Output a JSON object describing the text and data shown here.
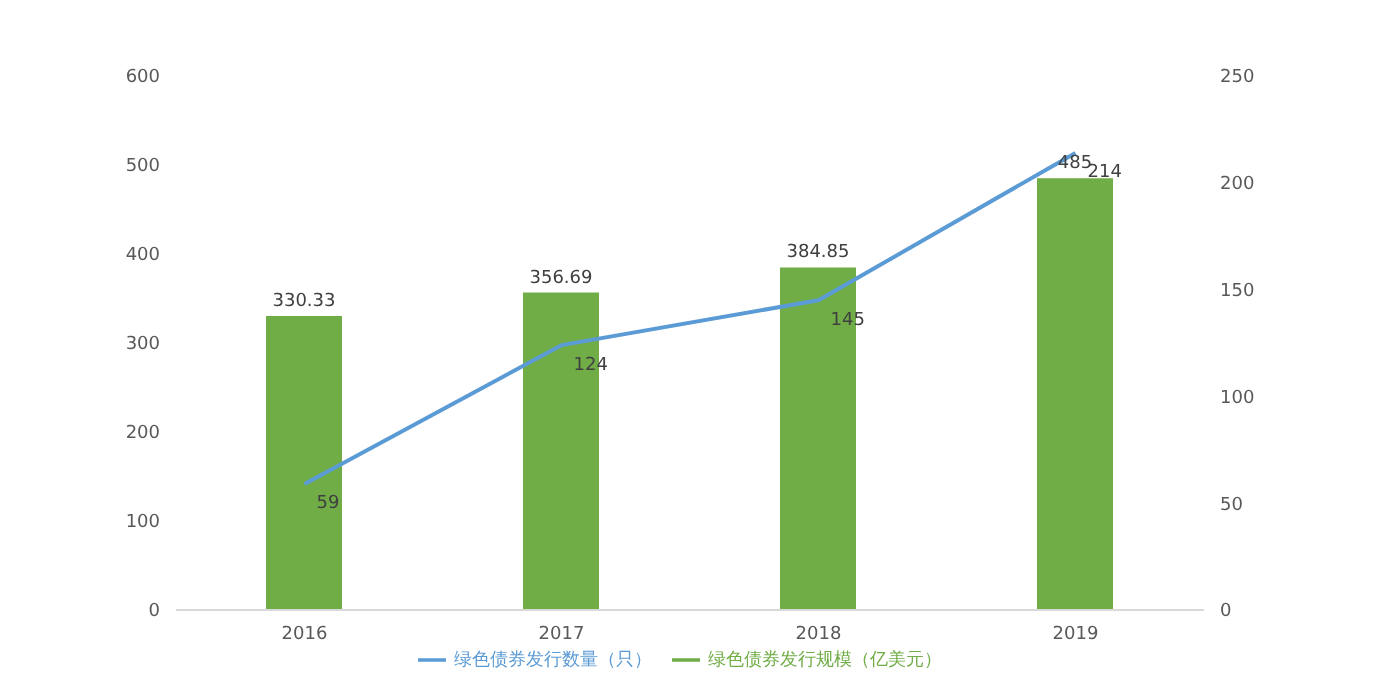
{
  "chart_data": {
    "type": "bar",
    "categories": [
      "2016",
      "2017",
      "2018",
      "2019"
    ],
    "series": [
      {
        "name": "绿色债券发行规模（亿美元）",
        "color": "#70ad47",
        "values": [
          330.33,
          356.69,
          384.85,
          485
        ]
      },
      {
        "name": "绿色债券发行数量（只）",
        "color": "#5b9bd5",
        "values": [
          59,
          124,
          145,
          214
        ],
        "type": "line",
        "axis": "y2"
      }
    ],
    "ylim": [
      0,
      600
    ],
    "yticks": [
      0,
      100,
      200,
      300,
      400,
      500,
      600
    ],
    "y2lim": [
      0,
      250
    ],
    "y2ticks": [
      0,
      50,
      100,
      150,
      200,
      250
    ],
    "data_labels": true,
    "legend": "bottom",
    "grid": false,
    "marker": "none"
  }
}
